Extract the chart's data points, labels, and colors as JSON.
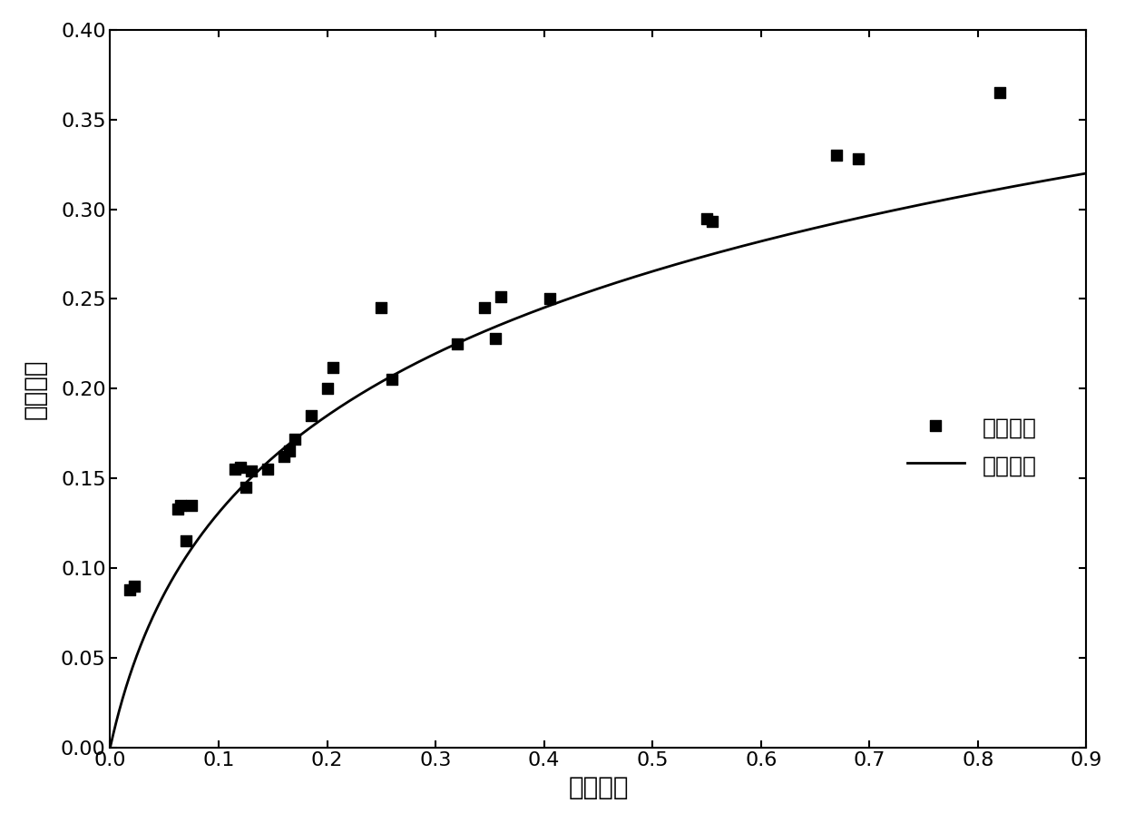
{
  "scatter_x": [
    0.018,
    0.022,
    0.062,
    0.065,
    0.07,
    0.075,
    0.115,
    0.12,
    0.125,
    0.13,
    0.145,
    0.16,
    0.165,
    0.17,
    0.185,
    0.2,
    0.205,
    0.25,
    0.26,
    0.32,
    0.345,
    0.355,
    0.36,
    0.405,
    0.55,
    0.555,
    0.67,
    0.69,
    0.82
  ],
  "scatter_y": [
    0.088,
    0.09,
    0.133,
    0.135,
    0.115,
    0.135,
    0.155,
    0.156,
    0.145,
    0.154,
    0.155,
    0.162,
    0.165,
    0.172,
    0.185,
    0.2,
    0.212,
    0.245,
    0.205,
    0.225,
    0.245,
    0.228,
    0.251,
    0.25,
    0.295,
    0.293,
    0.33,
    0.328,
    0.365
  ],
  "curve_a": 0.098,
  "curve_b": 28.0,
  "xlim": [
    0.0,
    0.9
  ],
  "ylim": [
    0.0,
    0.4
  ],
  "xticks": [
    0.0,
    0.1,
    0.2,
    0.3,
    0.4,
    0.5,
    0.6,
    0.7,
    0.8,
    0.9
  ],
  "yticks": [
    0.0,
    0.05,
    0.1,
    0.15,
    0.2,
    0.25,
    0.3,
    0.35,
    0.4
  ],
  "xlabel": "塑性应变",
  "ylabel": "损伤变量",
  "legend_scatter": "试验数据",
  "legend_line": "本构模型",
  "scatter_color": "#000000",
  "line_color": "#000000",
  "background_color": "#ffffff",
  "marker_size": 72,
  "line_width": 2.0,
  "xlabel_fontsize": 20,
  "ylabel_fontsize": 20,
  "tick_fontsize": 16,
  "legend_fontsize": 18
}
